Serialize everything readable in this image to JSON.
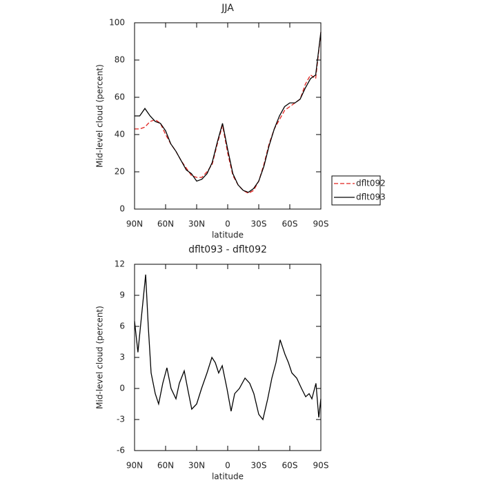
{
  "chart_data": [
    {
      "type": "line",
      "title": "JJA",
      "xlabel": "latitude",
      "ylabel": "Mid-level cloud (percent)",
      "xlim": [
        90,
        -90
      ],
      "ylim": [
        0,
        100
      ],
      "xticks": [
        {
          "value": 90,
          "label": "90N"
        },
        {
          "value": 60,
          "label": "60N"
        },
        {
          "value": 30,
          "label": "30N"
        },
        0,
        {
          "value": -30,
          "label": "30S"
        },
        {
          "value": -60,
          "label": "60S"
        },
        {
          "value": -90,
          "label": "90S"
        }
      ],
      "yticks": [
        0,
        20,
        40,
        60,
        80,
        100
      ],
      "legend": "right",
      "x": [
        90,
        85,
        80,
        75,
        70,
        65,
        60,
        55,
        50,
        45,
        40,
        35,
        30,
        25,
        20,
        15,
        10,
        5,
        0,
        -5,
        -10,
        -15,
        -20,
        -25,
        -30,
        -35,
        -40,
        -45,
        -50,
        -55,
        -60,
        -65,
        -70,
        -75,
        -80,
        -85,
        -90
      ],
      "series": [
        {
          "name": "dflt092",
          "color": "#e0201c",
          "style": "dashed",
          "values": [
            43,
            43,
            44,
            47,
            48,
            46,
            40,
            35,
            31,
            26,
            22,
            18,
            17,
            17,
            20,
            24,
            35,
            45,
            30,
            18,
            13,
            10,
            8.5,
            10,
            15,
            24,
            35,
            43,
            48,
            53,
            55,
            57,
            59,
            67,
            72,
            70,
            95
          ]
        },
        {
          "name": "dflt093",
          "color": "#000000",
          "style": "solid",
          "values": [
            50,
            50,
            54,
            50,
            47,
            46,
            42,
            35,
            31,
            26,
            21,
            19,
            15,
            16,
            19,
            25,
            36,
            46,
            32,
            19,
            13,
            10,
            9,
            11,
            15,
            23,
            34,
            43,
            50,
            55,
            57,
            57,
            59,
            65,
            70,
            72,
            95
          ]
        }
      ]
    },
    {
      "type": "line",
      "title": "dflt093 - dflt092",
      "xlabel": "latitude",
      "ylabel": "Mid-level cloud (percent)",
      "xlim": [
        90,
        -90
      ],
      "ylim": [
        -6,
        12
      ],
      "xticks": [
        {
          "value": 90,
          "label": "90N"
        },
        {
          "value": 60,
          "label": "60N"
        },
        {
          "value": 30,
          "label": "30N"
        },
        0,
        {
          "value": -30,
          "label": "30S"
        },
        {
          "value": -60,
          "label": "60S"
        },
        {
          "value": -90,
          "label": "90S"
        }
      ],
      "yticks": [
        -6,
        -3,
        0,
        3,
        6,
        9,
        12
      ],
      "x": [
        90,
        86.7,
        83.3,
        79.3,
        76.7,
        74,
        70,
        66.7,
        62.7,
        58.7,
        54.7,
        50,
        46.7,
        42,
        38.7,
        34.7,
        30,
        25.3,
        20,
        15.3,
        12,
        8.7,
        5.3,
        0.7,
        -3.3,
        -6.7,
        -11.3,
        -16.7,
        -21.3,
        -25.3,
        -30,
        -34,
        -38.7,
        -42.7,
        -46.7,
        -50.7,
        -55.3,
        -58.7,
        -62,
        -66.7,
        -71.3,
        -75.3,
        -78.7,
        -81.3,
        -85.3,
        -88,
        -90
      ],
      "series": [
        {
          "name": "dflt093 - dflt092",
          "color": "#000000",
          "style": "solid",
          "values": [
            6.5,
            3.5,
            7,
            11,
            6,
            1.5,
            -0.5,
            -1.5,
            0.5,
            2,
            0,
            -1,
            0.5,
            1.7,
            0,
            -2,
            -1.5,
            0,
            1.5,
            3,
            2.5,
            1.5,
            2.2,
            0,
            -2.2,
            -0.5,
            0,
            1,
            0.5,
            -0.5,
            -2.5,
            -3,
            -1,
            1,
            2.5,
            4.7,
            3.3,
            2.5,
            1.5,
            1,
            0,
            -0.8,
            -0.5,
            -1,
            0.5,
            -2.8,
            -1
          ]
        }
      ]
    }
  ]
}
